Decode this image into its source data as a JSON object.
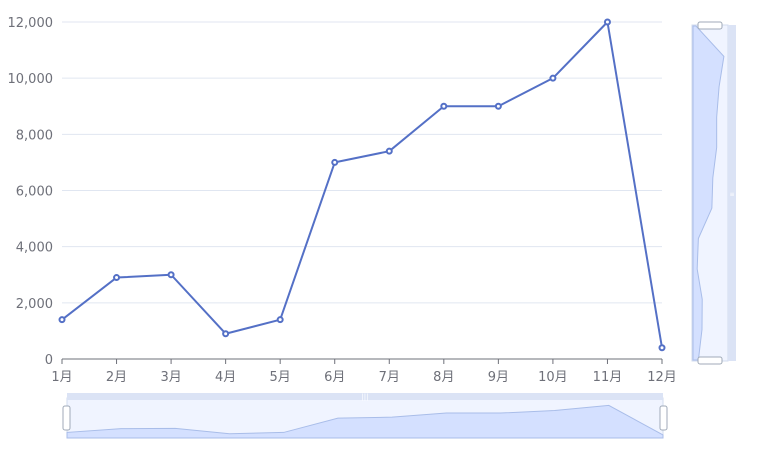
{
  "chart_data": {
    "type": "line",
    "categories": [
      "1月",
      "2月",
      "3月",
      "4月",
      "5月",
      "6月",
      "7月",
      "8月",
      "9月",
      "10月",
      "11月",
      "12月"
    ],
    "series": [
      {
        "values": [
          1400,
          2900,
          3000,
          900,
          1400,
          7000,
          7400,
          9000,
          9000,
          10000,
          12000,
          400
        ]
      }
    ],
    "ylim": [
      0,
      12000
    ],
    "yticks": [
      0,
      2000,
      4000,
      6000,
      8000,
      10000,
      12000
    ],
    "ytick_labels": [
      "0",
      "2,000",
      "4,000",
      "6,000",
      "8,000",
      "10,000",
      "12,000"
    ],
    "grid": true,
    "colors": {
      "line": "#5470c6",
      "grid": "#e0e6f1",
      "axis": "#6e7079",
      "zoom_fill": "#d4e0ff",
      "zoom_border": "#d2dbee",
      "zoom_handle": "#ffffff"
    },
    "data_zoom": {
      "horizontal": {
        "start_percent": 0,
        "end_percent": 100
      },
      "vertical": {
        "start_percent": 0,
        "end_percent": 100
      }
    }
  }
}
